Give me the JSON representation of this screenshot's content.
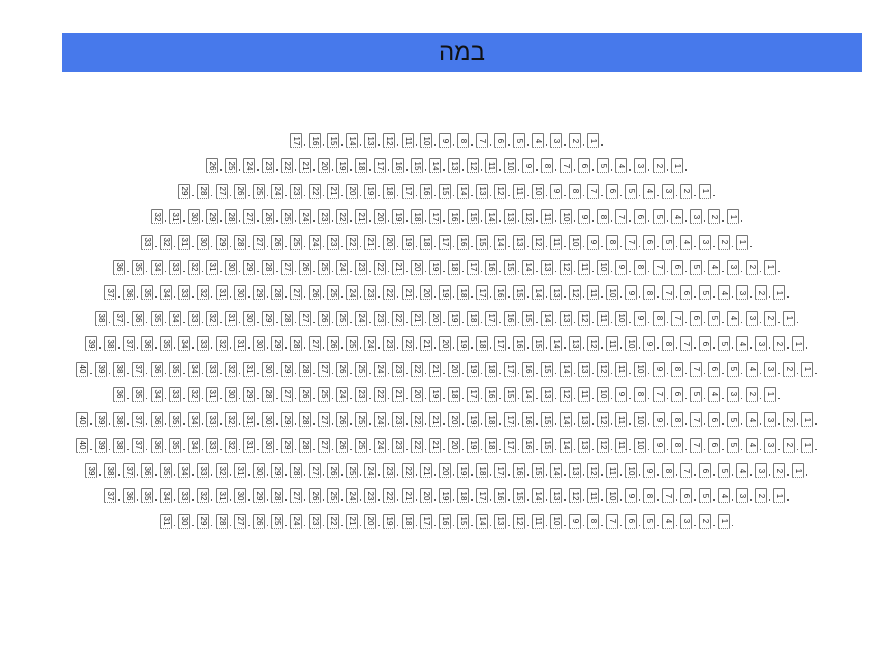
{
  "stage": {
    "label": "במה"
  },
  "colors": {
    "stage": "#4779eb",
    "seat_border": "#777777"
  },
  "hall": {
    "direction": "rtl",
    "seat_numbering": "starts at 1 from the right in each row",
    "row_seat_counts": [
      17,
      26,
      29,
      32,
      33,
      36,
      37,
      38,
      39,
      40,
      36,
      40,
      40,
      39,
      37,
      31
    ]
  }
}
